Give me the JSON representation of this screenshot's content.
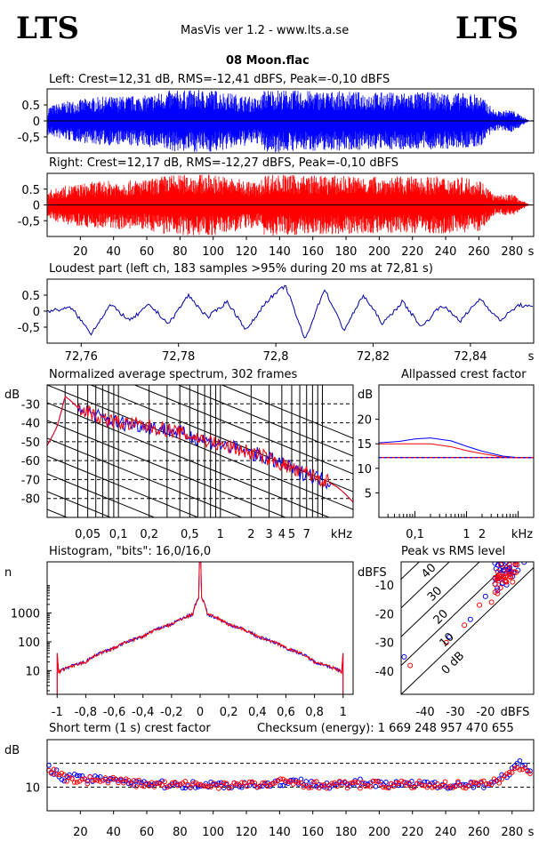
{
  "header": {
    "logo_left": "LTS",
    "logo_right": "LTS",
    "app_title": "MasVis ver 1.2 - www.lts.a.se",
    "file_title": "08 Moon.flac"
  },
  "colors": {
    "left": "#0000ff",
    "right": "#ff0000",
    "loud": "#0000a8"
  },
  "panels": {
    "left_wave": {
      "title": "Left: Crest=12,31 dB, RMS=-12,41 dBFS, Peak=-0,10 dBFS",
      "yticks": [
        "0.5",
        "0",
        "-0,5"
      ]
    },
    "right_wave": {
      "title": "Right: Crest=12,17 dB, RMS=-12,27 dBFS, Peak=-0,10 dBFS",
      "yticks": [
        "0.5",
        "0",
        "-0,5"
      ],
      "xticks": [
        "20",
        "40",
        "60",
        "80",
        "100",
        "120",
        "140",
        "160",
        "180",
        "200",
        "220",
        "240",
        "260",
        "280"
      ],
      "xunit": "s"
    },
    "loudest": {
      "title": "Loudest part (left  ch, 183 samples >95% during 20 ms at 72,81 s)",
      "yticks": [
        "0.5",
        "0",
        "-0,5"
      ],
      "xticks": [
        "72,76",
        "72,78",
        "72,8",
        "72,82",
        "72,84"
      ],
      "xunit": "s"
    },
    "spectrum": {
      "title": "Normalized average spectrum, 302 frames",
      "ylabel": "dB",
      "yticks": [
        "-30",
        "-40",
        "-50",
        "-60",
        "-70",
        "-80"
      ],
      "xticks": [
        "0,05",
        "0,1",
        "0,2",
        "0,5",
        "1",
        "2",
        "3",
        "4",
        "5",
        "7"
      ],
      "xunit": "kHz"
    },
    "allpass": {
      "title": "Allpassed crest factor",
      "ylabel": "dB",
      "yticks": [
        "20",
        "15",
        "10",
        "5"
      ],
      "xticks": [
        "0,1",
        "1",
        "2"
      ],
      "xunit": "kHz"
    },
    "histogram": {
      "title": "Histogram, \"bits\": 16,0/16,0",
      "ylabel": "n",
      "yticks": [
        "1000",
        "100",
        "10"
      ],
      "xticks": [
        "-1",
        "-0,8",
        "-0,6",
        "-0,4",
        "-0,2",
        "0",
        "0,2",
        "0,4",
        "0,6",
        "0,8",
        "1"
      ]
    },
    "peakrms": {
      "title": "Peak vs RMS level",
      "ylabel": "dBFS",
      "yticks": [
        "-10",
        "-20",
        "-30",
        "-40"
      ],
      "xticks": [
        "-40",
        "-30",
        "-20"
      ],
      "xunit": "dBFS",
      "diag_labels": [
        "40",
        "30",
        "20",
        "10",
        "0 dB"
      ]
    },
    "crest": {
      "title": "Short term (1 s) crest factor",
      "checksum": "Checksum (energy):  1 669 248 957 470 655",
      "ylabel": "dB",
      "yticks": [
        "10"
      ],
      "xticks": [
        "20",
        "40",
        "60",
        "80",
        "100",
        "120",
        "140",
        "160",
        "180",
        "200",
        "220",
        "240",
        "260",
        "280"
      ],
      "xunit": "s"
    }
  },
  "chart_data": [
    {
      "type": "area",
      "title": "Left: Crest=12,31 dB, RMS=-12,41 dBFS, Peak=-0,10 dBFS",
      "x": [
        0,
        10,
        30,
        60,
        72,
        100,
        128,
        131,
        150,
        200,
        240,
        260,
        270,
        280,
        290
      ],
      "envelope": [
        0.45,
        0.6,
        0.75,
        0.8,
        0.95,
        0.98,
        0.7,
        1.0,
        0.95,
        0.9,
        0.9,
        0.85,
        0.3,
        0.35,
        0.02
      ],
      "xlim": [
        0,
        293
      ],
      "ylim": [
        -1,
        1
      ]
    },
    {
      "type": "area",
      "title": "Right: Crest=12,17 dB, RMS=-12,27 dBFS, Peak=-0,10 dBFS",
      "x": [
        0,
        10,
        30,
        60,
        72,
        100,
        128,
        131,
        150,
        200,
        240,
        260,
        270,
        280,
        290
      ],
      "envelope": [
        0.45,
        0.6,
        0.75,
        0.8,
        0.95,
        0.98,
        0.7,
        1.0,
        0.95,
        0.9,
        0.9,
        0.85,
        0.3,
        0.35,
        0.02
      ],
      "xlim": [
        0,
        293
      ],
      "ylim": [
        -1,
        1
      ]
    },
    {
      "type": "line",
      "title": "Loudest part (left  ch, 183 samples >95% during 20 ms at 72,81 s)",
      "x": [
        72.753,
        72.758,
        72.762,
        72.766,
        72.77,
        72.774,
        72.778,
        72.782,
        72.786,
        72.79,
        72.794,
        72.798,
        72.802,
        72.806,
        72.81,
        72.814,
        72.818,
        72.822,
        72.826,
        72.83,
        72.834,
        72.838,
        72.842,
        72.846,
        72.85,
        72.853
      ],
      "y": [
        0.0,
        0.1,
        -0.7,
        0.2,
        -0.3,
        0.2,
        -0.4,
        0.5,
        -0.2,
        0.3,
        -0.6,
        0.3,
        0.8,
        -0.9,
        0.7,
        -0.6,
        0.5,
        -0.4,
        0.3,
        -0.5,
        0.2,
        -0.3,
        0.4,
        -0.3,
        0.2,
        0.1
      ],
      "xlim": [
        72.753,
        72.853
      ],
      "ylim": [
        -1,
        1
      ]
    },
    {
      "type": "line",
      "title": "Normalized average spectrum, 302 frames",
      "xscale": "log",
      "x": [
        0.02,
        0.025,
        0.03,
        0.04,
        0.05,
        0.07,
        0.1,
        0.2,
        0.5,
        1,
        2,
        3,
        4,
        5,
        6,
        7,
        8,
        10,
        14,
        20
      ],
      "y": [
        -52,
        -42,
        -26,
        -32,
        -34,
        -38,
        -40,
        -42,
        -47,
        -52,
        -56,
        -59,
        -62,
        -64,
        -67,
        -66,
        -68,
        -70,
        -74,
        -82
      ],
      "xlim": [
        0.02,
        20
      ],
      "ylim": [
        -90,
        -20
      ]
    },
    {
      "type": "line",
      "title": "Allpassed crest factor",
      "xscale": "log",
      "x": [
        0.02,
        0.05,
        0.1,
        0.2,
        0.5,
        1,
        2,
        5,
        10,
        20
      ],
      "series": [
        {
          "values": [
            15.2,
            15.5,
            16,
            16.2,
            15.6,
            14.5,
            13.5,
            12.5,
            12.2,
            12.2
          ]
        },
        {
          "values": [
            15.0,
            15.0,
            15.0,
            15.0,
            14.4,
            13.6,
            13.0,
            12.3,
            12.2,
            12.2
          ]
        }
      ],
      "xlim": [
        0.02,
        20
      ],
      "ylim": [
        0,
        27
      ]
    },
    {
      "type": "line",
      "title": "Histogram, \"bits\": 16,0/16,0",
      "yscale": "log",
      "x": [
        -1,
        -0.99,
        -0.8,
        -0.6,
        -0.4,
        -0.2,
        -0.05,
        0,
        0.05,
        0.2,
        0.4,
        0.6,
        0.8,
        0.99,
        1
      ],
      "y": [
        40,
        9,
        20,
        60,
        150,
        400,
        900,
        4000,
        900,
        400,
        150,
        60,
        20,
        9,
        40
      ],
      "xlim": [
        -1.07,
        1.07
      ],
      "ylim": [
        1.5,
        60000
      ]
    },
    {
      "type": "scatter",
      "title": "Peak vs RMS level",
      "xlim": [
        -48,
        -4
      ],
      "ylim": [
        -48,
        -2
      ],
      "series": [
        {
          "x": [
            -14,
            -13,
            -12,
            -13,
            -15,
            -10,
            -12,
            -16,
            -11,
            -20,
            -25,
            -32,
            -47
          ],
          "y": [
            -5,
            -2,
            -6,
            -10,
            -8,
            -3,
            -4,
            -12,
            -7,
            -14,
            -22,
            -28,
            -35
          ]
        },
        {
          "x": [
            -13,
            -12,
            -14,
            -11,
            -15,
            -10,
            -16,
            -18,
            -12,
            -22,
            -27,
            -33,
            -45
          ],
          "y": [
            -4,
            -3,
            -7,
            -9,
            -11,
            -2,
            -13,
            -16,
            -5,
            -17,
            -24,
            -30,
            -38
          ]
        }
      ]
    },
    {
      "type": "scatter",
      "title": "Short term (1 s) crest factor",
      "xlim": [
        0,
        293
      ],
      "ylim": [
        5,
        20
      ],
      "x": [
        2,
        10,
        20,
        30,
        40,
        50,
        60,
        70,
        80,
        90,
        100,
        110,
        120,
        130,
        140,
        150,
        160,
        170,
        180,
        190,
        200,
        210,
        220,
        230,
        240,
        250,
        260,
        270,
        278,
        285,
        290
      ],
      "series": [
        {
          "values": [
            14,
            12,
            12,
            11.5,
            12,
            11,
            11,
            10.5,
            10.5,
            10.5,
            10.5,
            10.5,
            10.5,
            10.5,
            11,
            11,
            11,
            10.5,
            10.5,
            11,
            10.5,
            10.5,
            10.5,
            10.5,
            10.5,
            10.5,
            10.5,
            11,
            13,
            15,
            13
          ]
        },
        {
          "values": [
            13.5,
            12,
            11.5,
            11.5,
            11.5,
            11,
            10.5,
            10.5,
            10.5,
            10.5,
            10.5,
            10.5,
            10.5,
            10.5,
            11,
            11,
            10.5,
            10.5,
            10.5,
            10.5,
            10.5,
            10.5,
            10.5,
            10.5,
            10.5,
            10.5,
            10.5,
            11,
            13,
            14,
            13
          ]
        }
      ]
    }
  ]
}
